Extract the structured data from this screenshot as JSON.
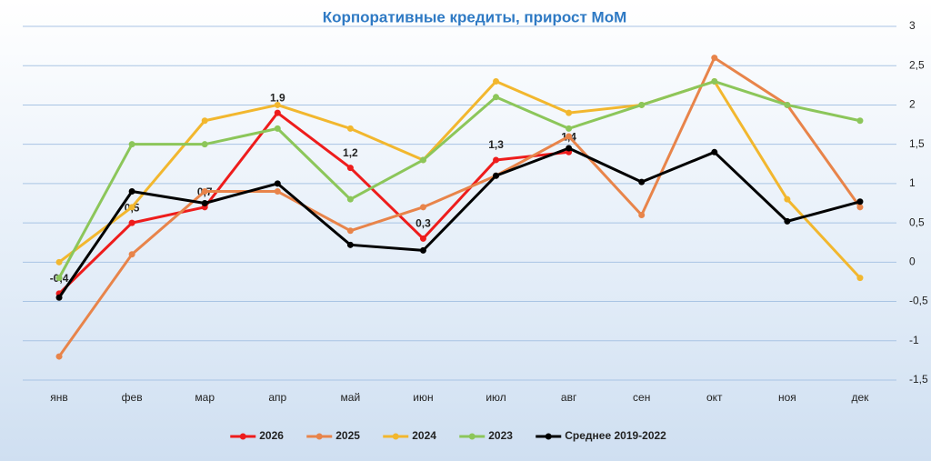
{
  "chart_data": {
    "type": "line",
    "title": "Корпоративные кредиты, прирост МоМ",
    "categories": [
      "янв",
      "фев",
      "мар",
      "апр",
      "май",
      "июн",
      "июл",
      "авг",
      "сен",
      "окт",
      "ноя",
      "дек"
    ],
    "ylim": [
      -1.5,
      3
    ],
    "yticks": [
      {
        "value": -1.5,
        "label": "-1,5"
      },
      -1,
      {
        "value": -0.5,
        "label": "-0,5"
      },
      0,
      {
        "value": 0.5,
        "label": "0,5"
      },
      1,
      {
        "value": 1.5,
        "label": "1,5"
      },
      2,
      {
        "value": 2.5,
        "label": "2,5"
      },
      3
    ],
    "grid": true,
    "legend": "bottom",
    "series": [
      {
        "name": "2026",
        "color": "#ee1c1c",
        "values": [
          -0.4,
          0.5,
          0.7,
          1.9,
          1.2,
          0.3,
          1.3,
          1.4,
          null,
          null,
          null,
          null
        ],
        "value_labels": [
          "-0,4",
          "0,5",
          "0,7",
          "1,9",
          "1,2",
          "0,3",
          "1,3",
          "1,4",
          null,
          null,
          null,
          null
        ]
      },
      {
        "name": "2025",
        "color": "#e8844a",
        "values": [
          -1.2,
          0.1,
          0.9,
          0.9,
          0.4,
          0.7,
          1.1,
          1.6,
          0.6,
          2.6,
          2.0,
          0.7
        ]
      },
      {
        "name": "2024",
        "color": "#f2b72e",
        "values": [
          0,
          0.7,
          1.8,
          2.0,
          1.7,
          1.3,
          2.3,
          1.9,
          2.0,
          2.3,
          0.8,
          -0.2
        ]
      },
      {
        "name": "2023",
        "color": "#8cc65a",
        "values": [
          -0.2,
          1.5,
          1.5,
          1.7,
          0.8,
          1.3,
          2.1,
          1.7,
          2.0,
          2.3,
          2.0,
          1.8
        ]
      },
      {
        "name": "Среднее 2019-2022",
        "color": "#000000",
        "values": [
          -0.45,
          0.9,
          0.75,
          1.0,
          0.22,
          0.15,
          1.1,
          1.45,
          1.02,
          1.4,
          0.52,
          0.77
        ]
      }
    ]
  }
}
